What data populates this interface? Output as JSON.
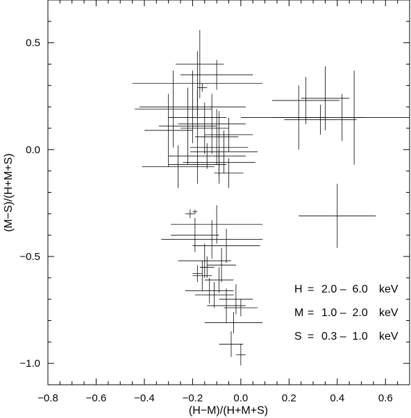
{
  "chart_data": {
    "type": "scatter",
    "title": "",
    "xlabel": "(H−M)/(H+M+S)",
    "ylabel": "(M−S)/(H+M+S)",
    "xlim": [
      -0.8,
      0.7
    ],
    "ylim": [
      -1.1,
      0.7
    ],
    "x_ticks": [
      -0.8,
      -0.6,
      -0.4,
      -0.2,
      0.0,
      0.2,
      0.4,
      0.6
    ],
    "x_tick_labels": [
      "−0.8",
      "−0.6",
      "−0.4",
      "−0.2",
      "0.0",
      "0.2",
      "0.4",
      "0.6"
    ],
    "y_ticks": [
      -1.0,
      -0.5,
      0.0,
      0.5
    ],
    "y_tick_labels": [
      "−1.0",
      "−0.5",
      "0.0",
      "0.5"
    ],
    "grid": false,
    "error_bars": true,
    "points": [
      {
        "x": -0.17,
        "y": 0.4,
        "xerr": 0.1,
        "yerr": 0.16
      },
      {
        "x": -0.1,
        "y": 0.35,
        "xerr": 0.15,
        "yerr": 0.07
      },
      {
        "x": -0.16,
        "y": 0.29,
        "xerr": 0.02,
        "yerr": 0.02
      },
      {
        "x": -0.18,
        "y": 0.31,
        "xerr": 0.27,
        "yerr": 0.15
      },
      {
        "x": -0.2,
        "y": 0.2,
        "xerr": 0.22,
        "yerr": 0.17
      },
      {
        "x": -0.28,
        "y": 0.19,
        "xerr": 0.16,
        "yerr": 0.18
      },
      {
        "x": -0.22,
        "y": 0.11,
        "xerr": 0.12,
        "yerr": 0.18
      },
      {
        "x": -0.3,
        "y": 0.09,
        "xerr": 0.1,
        "yerr": 0.17
      },
      {
        "x": -0.18,
        "y": 0.15,
        "xerr": 0.12,
        "yerr": 0.13
      },
      {
        "x": -0.12,
        "y": 0.12,
        "xerr": 0.14,
        "yerr": 0.14
      },
      {
        "x": -0.15,
        "y": 0.1,
        "xerr": 0.1,
        "yerr": 0.12
      },
      {
        "x": -0.1,
        "y": 0.06,
        "xerr": 0.09,
        "yerr": 0.13
      },
      {
        "x": -0.09,
        "y": 0.01,
        "xerr": 0.12,
        "yerr": 0.17
      },
      {
        "x": -0.07,
        "y": -0.01,
        "xerr": 0.14,
        "yerr": 0.1
      },
      {
        "x": -0.05,
        "y": 0.07,
        "xerr": 0.1,
        "yerr": 0.08
      },
      {
        "x": -0.14,
        "y": -0.03,
        "xerr": 0.16,
        "yerr": 0.06
      },
      {
        "x": -0.18,
        "y": -0.07,
        "xerr": 0.12,
        "yerr": 0.09
      },
      {
        "x": -0.26,
        "y": -0.08,
        "xerr": 0.15,
        "yerr": 0.1
      },
      {
        "x": -0.09,
        "y": -0.06,
        "xerr": 0.15,
        "yerr": 0.06
      },
      {
        "x": -0.05,
        "y": -0.11,
        "xerr": 0.06,
        "yerr": 0.07
      },
      {
        "x": 0.27,
        "y": 0.23,
        "xerr": 0.14,
        "yerr": 0.11
      },
      {
        "x": 0.35,
        "y": 0.24,
        "xerr": 0.1,
        "yerr": 0.15
      },
      {
        "x": 0.42,
        "y": 0.15,
        "xerr": 0.42,
        "yerr": 0.11
      },
      {
        "x": 0.33,
        "y": 0.14,
        "xerr": 0.15,
        "yerr": 0.07
      },
      {
        "x": 0.47,
        "y": 0.15,
        "xerr": 0.04,
        "yerr": 0.22
      },
      {
        "x": 0.24,
        "y": 0.15,
        "xerr": 0.11,
        "yerr": 0.15
      },
      {
        "x": 0.4,
        "y": -0.31,
        "xerr": 0.16,
        "yerr": 0.15
      },
      {
        "x": -0.21,
        "y": -0.3,
        "xerr": 0.02,
        "yerr": 0.02
      },
      {
        "x": -0.19,
        "y": -0.29,
        "xerr": 0.01,
        "yerr": 0.01
      },
      {
        "x": -0.1,
        "y": -0.35,
        "xerr": 0.19,
        "yerr": 0.09
      },
      {
        "x": -0.19,
        "y": -0.4,
        "xerr": 0.1,
        "yerr": 0.08
      },
      {
        "x": -0.12,
        "y": -0.42,
        "xerr": 0.21,
        "yerr": 0.09
      },
      {
        "x": -0.06,
        "y": -0.45,
        "xerr": 0.14,
        "yerr": 0.08
      },
      {
        "x": -0.15,
        "y": -0.52,
        "xerr": 0.11,
        "yerr": 0.08
      },
      {
        "x": -0.14,
        "y": -0.55,
        "xerr": 0.03,
        "yerr": 0.05
      },
      {
        "x": -0.08,
        "y": -0.54,
        "xerr": 0.06,
        "yerr": 0.08
      },
      {
        "x": -0.18,
        "y": -0.58,
        "xerr": 0.02,
        "yerr": 0.04
      },
      {
        "x": -0.16,
        "y": -0.59,
        "xerr": 0.04,
        "yerr": 0.07
      },
      {
        "x": -0.13,
        "y": -0.66,
        "xerr": 0.1,
        "yerr": 0.06
      },
      {
        "x": -0.11,
        "y": -0.68,
        "xerr": 0.08,
        "yerr": 0.06
      },
      {
        "x": -0.09,
        "y": -0.61,
        "xerr": 0.06,
        "yerr": 0.06
      },
      {
        "x": -0.06,
        "y": -0.73,
        "xerr": 0.08,
        "yerr": 0.08
      },
      {
        "x": -0.02,
        "y": -0.7,
        "xerr": 0.07,
        "yerr": 0.07
      },
      {
        "x": 0.0,
        "y": -0.74,
        "xerr": 0.07,
        "yerr": 0.04
      },
      {
        "x": -0.03,
        "y": -0.81,
        "xerr": 0.12,
        "yerr": 0.05
      },
      {
        "x": -0.04,
        "y": -0.91,
        "xerr": 0.05,
        "yerr": 0.06
      },
      {
        "x": 0.0,
        "y": -0.96,
        "xerr": 0.02,
        "yerr": 0.05
      }
    ]
  },
  "legend": {
    "lines": [
      {
        "band": "H",
        "eq": "=",
        "range": "2.0 –  6.0",
        "unit": "keV"
      },
      {
        "band": "M",
        "eq": "=",
        "range": "1.0 –  2.0",
        "unit": "keV"
      },
      {
        "band": "S",
        "eq": "=",
        "range": "0.3 –  1.0",
        "unit": "keV"
      }
    ]
  }
}
